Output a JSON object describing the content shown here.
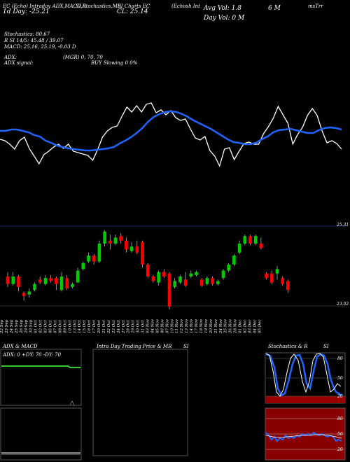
{
  "header": {
    "row1_a": "EC (Echo) Intraday ADX,MACD,R",
    "row1_b": "SI,Stochastics,MR",
    "row1_c": "SI Charts EC",
    "row1_d": "(Echosh Int",
    "row1_e": "Avg Vol: 1.8",
    "row1_f": "6  M",
    "row1_g": "msTrr",
    "row2_a": "1d  Day: -25.21",
    "row2_b": "CL: 25.14",
    "row2_c": "Day Vol: 0   M",
    "stoch": "Stochastics: 80.67",
    "rsi": "R          SI 14/5: 45.48  / 39.07",
    "macd": "MACD: 25.16,  25.19,  -0.03 D",
    "adx": "ADX:",
    "adx_vals": "(MGR) 0,  70,  70",
    "adx_signal": "ADX   signal:",
    "buy_signal": "BUY Slowing 0 0%"
  },
  "price_labels": {
    "top": "25.31",
    "bottom": "23.02"
  },
  "dates": [
    "22 Sep",
    "23 Sep",
    "24 Sep",
    "25 Sep",
    "26 Sep",
    "29 Sep",
    "30 Sep",
    "01 Oct",
    "02 Oct",
    "03 Oct",
    "06 Oct",
    "07 Oct",
    "08 Oct",
    "09 Oct",
    "10 Oct",
    "13 Oct",
    "14 Oct",
    "15 Oct",
    "16 Oct",
    "17 Oct",
    "20 Oct",
    "21 Oct",
    "22 Oct",
    "23 Oct",
    "24 Oct",
    "27 Oct",
    "28 Oct",
    "29 Oct",
    "30 Oct",
    "31 Oct",
    "03 Nov",
    "04 Nov",
    "05 Nov",
    "06 Nov",
    "07 Nov",
    "10 Nov",
    "11 Nov",
    "12 Nov",
    "13 Nov",
    "14 Nov",
    "17 Nov",
    "18 Nov",
    "19 Nov",
    "20 Nov",
    "21 Nov",
    "24 Nov",
    "25 Nov",
    "26 Nov",
    "28 Nov",
    "01 Dec",
    "02 Dec",
    "03 Dec",
    "04 Dec",
    "05 Dec"
  ],
  "panels": {
    "adx_title": "ADX  & MACD",
    "adx_text": "ADX: 0   +DY: 70   -DY: 70",
    "intra_title": "Intra  Day Trading Price  & MR",
    "intra_title2": "SI",
    "stoch_title": "Stochastics & R",
    "stoch_title2": "SI",
    "stoch_ticks": [
      "80",
      "50",
      "20"
    ],
    "rsi_ticks": [
      "80",
      "50",
      "20"
    ]
  },
  "colors": {
    "up": "#00cc00",
    "down": "#ff0000",
    "ma": "#1e64ff",
    "line": "#ffffff",
    "stoch": "#1e64ff",
    "rsi_bg": "#880000",
    "stoch_bg_low": "#990000",
    "adx": "#33cc33"
  },
  "chart_data": {
    "type": "candlestick",
    "candles": [
      {
        "o": 23.8,
        "c": 23.55,
        "h": 23.95,
        "l": 23.45
      },
      {
        "o": 23.55,
        "c": 23.8,
        "h": 23.95,
        "l": 23.5
      },
      {
        "o": 23.8,
        "c": 23.45,
        "h": 23.85,
        "l": 23.3
      },
      {
        "o": 23.25,
        "c": 23.15,
        "h": 23.3,
        "l": 23.0
      },
      {
        "o": 23.2,
        "c": 23.3,
        "h": 23.4,
        "l": 23.1
      },
      {
        "o": 23.35,
        "c": 23.55,
        "h": 23.6,
        "l": 23.3
      },
      {
        "o": 23.7,
        "c": 23.6,
        "h": 23.8,
        "l": 23.55
      },
      {
        "o": 23.55,
        "c": 23.75,
        "h": 23.85,
        "l": 23.5
      },
      {
        "o": 23.75,
        "c": 23.65,
        "h": 23.85,
        "l": 23.6
      },
      {
        "o": 23.75,
        "c": 23.55,
        "h": 23.8,
        "l": 23.35
      },
      {
        "o": 23.35,
        "c": 23.8,
        "h": 23.95,
        "l": 23.3
      },
      {
        "o": 23.75,
        "c": 23.4,
        "h": 23.85,
        "l": 23.35
      },
      {
        "o": 23.45,
        "c": 23.55,
        "h": 23.6,
        "l": 23.4
      },
      {
        "o": 23.6,
        "c": 24.0,
        "h": 24.1,
        "l": 23.6
      },
      {
        "o": 24.05,
        "c": 24.25,
        "h": 24.3,
        "l": 24.0
      },
      {
        "o": 24.3,
        "c": 24.5,
        "h": 24.6,
        "l": 24.25
      },
      {
        "o": 24.5,
        "c": 24.3,
        "h": 24.55,
        "l": 24.2
      },
      {
        "o": 24.3,
        "c": 24.9,
        "h": 25.0,
        "l": 24.25
      },
      {
        "o": 24.9,
        "c": 25.3,
        "h": 25.35,
        "l": 24.8
      },
      {
        "o": 25.0,
        "c": 24.9,
        "h": 25.2,
        "l": 24.7
      },
      {
        "o": 24.9,
        "c": 25.1,
        "h": 25.2,
        "l": 24.85
      },
      {
        "o": 25.15,
        "c": 25.0,
        "h": 25.25,
        "l": 24.9
      },
      {
        "o": 25.0,
        "c": 24.7,
        "h": 25.1,
        "l": 24.6
      },
      {
        "o": 24.65,
        "c": 24.8,
        "h": 24.95,
        "l": 24.6
      },
      {
        "o": 24.8,
        "c": 24.6,
        "h": 25.0,
        "l": 24.55
      },
      {
        "o": 24.95,
        "c": 24.2,
        "h": 25.0,
        "l": 24.1
      },
      {
        "o": 24.2,
        "c": 23.8,
        "h": 24.25,
        "l": 23.75
      },
      {
        "o": 23.8,
        "c": 23.65,
        "h": 23.85,
        "l": 23.6
      },
      {
        "o": 23.6,
        "c": 23.95,
        "h": 24.0,
        "l": 23.5
      },
      {
        "o": 23.95,
        "c": 23.8,
        "h": 24.05,
        "l": 23.75
      },
      {
        "o": 23.9,
        "c": 22.8,
        "h": 23.95,
        "l": 22.7
      },
      {
        "o": 23.45,
        "c": 23.65,
        "h": 23.75,
        "l": 23.4
      },
      {
        "o": 23.6,
        "c": 23.8,
        "h": 23.85,
        "l": 23.55
      },
      {
        "o": 23.7,
        "c": 23.5,
        "h": 23.95,
        "l": 23.45
      },
      {
        "o": 23.8,
        "c": 23.9,
        "h": 24.0,
        "l": 23.75
      },
      {
        "o": 23.85,
        "c": 23.95,
        "h": 24.0,
        "l": 23.8
      },
      {
        "o": 23.7,
        "c": 23.5,
        "h": 23.75,
        "l": 23.45
      },
      {
        "o": 23.55,
        "c": 23.75,
        "h": 23.8,
        "l": 23.5
      },
      {
        "o": 23.75,
        "c": 23.55,
        "h": 23.8,
        "l": 23.5
      },
      {
        "o": 23.55,
        "c": 23.65,
        "h": 23.7,
        "l": 23.5
      },
      {
        "o": 23.75,
        "c": 24.0,
        "h": 24.05,
        "l": 23.7
      },
      {
        "o": 24.0,
        "c": 24.2,
        "h": 24.25,
        "l": 23.95
      },
      {
        "o": 24.2,
        "c": 24.5,
        "h": 24.55,
        "l": 24.15
      },
      {
        "o": 24.6,
        "c": 24.9,
        "h": 25.0,
        "l": 24.55
      },
      {
        "o": 24.9,
        "c": 25.15,
        "h": 25.2,
        "l": 24.85
      },
      {
        "o": 25.15,
        "c": 24.9,
        "h": 25.2,
        "l": 24.85
      },
      {
        "o": 24.9,
        "c": 25.15,
        "h": 25.2,
        "l": 24.85
      },
      {
        "o": 24.9,
        "c": 24.75,
        "h": 25.1,
        "l": 24.7
      },
      {
        "o": 23.9,
        "c": 23.75,
        "h": 23.95,
        "l": 23.7
      },
      {
        "o": 23.9,
        "c": 23.6,
        "h": 24.0,
        "l": 23.55
      },
      {
        "o": 23.9,
        "c": 24.05,
        "h": 24.15,
        "l": 23.7
      },
      {
        "o": 23.75,
        "c": 23.55,
        "h": 23.8,
        "l": 23.5
      },
      {
        "o": 23.65,
        "c": 23.35,
        "h": 23.7,
        "l": 23.25
      }
    ],
    "ylim": [
      22.75,
      25.6
    ],
    "white_line": [
      199,
      201,
      206,
      213,
      201,
      196,
      212,
      223,
      234,
      221,
      216,
      210,
      206,
      212,
      206,
      216,
      218,
      220,
      222,
      229,
      214,
      196,
      187,
      182,
      180,
      166,
      153,
      160,
      151,
      160,
      149,
      147,
      161,
      157,
      164,
      158,
      168,
      172,
      170,
      184,
      197,
      200,
      195,
      215,
      223,
      237,
      213,
      211,
      228,
      216,
      205,
      203,
      206,
      206,
      191,
      181,
      169,
      152,
      164,
      176,
      206,
      192,
      182,
      165,
      155,
      165,
      187,
      204,
      201,
      205,
      213
    ],
    "blue_line": [
      187,
      187,
      185,
      185,
      187,
      189,
      193,
      195,
      201,
      204,
      208,
      210,
      212,
      213,
      214,
      215,
      215,
      214,
      213,
      212,
      210,
      205,
      201,
      196,
      190,
      183,
      174,
      167,
      163,
      160,
      159,
      160,
      163,
      167,
      172,
      176,
      180,
      184,
      189,
      194,
      199,
      203,
      204,
      206,
      206,
      204,
      199,
      195,
      189,
      186,
      185,
      184,
      186,
      188,
      190,
      190,
      186,
      183,
      182,
      183,
      185
    ]
  }
}
